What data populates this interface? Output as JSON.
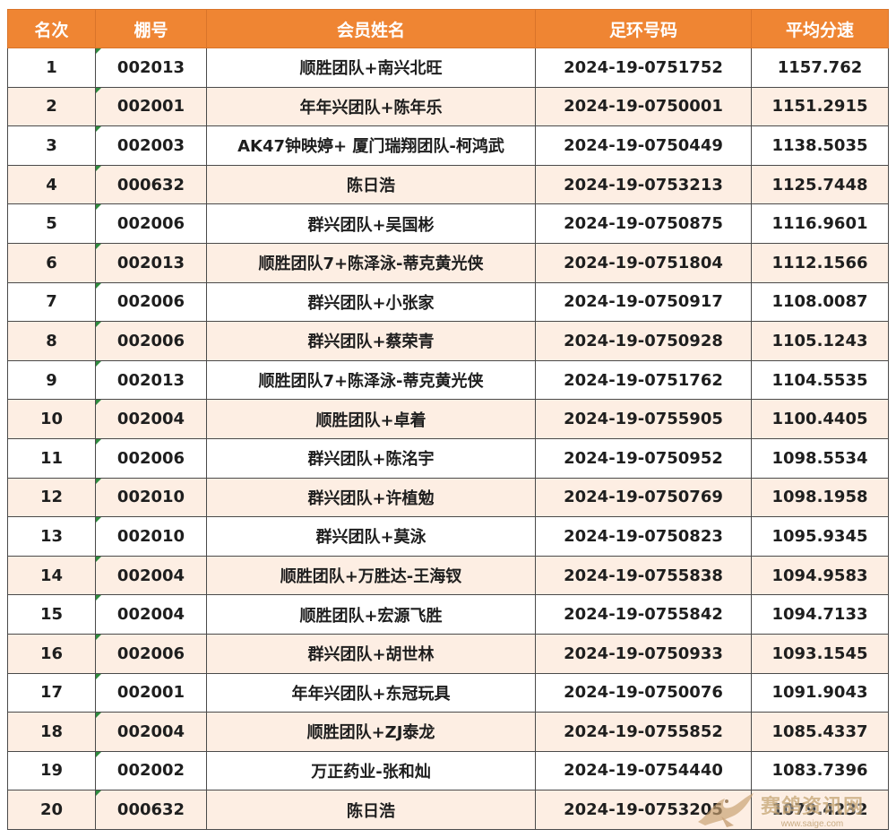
{
  "table": {
    "headers": {
      "rank": "名次",
      "shed": "棚号",
      "member": "会员姓名",
      "ring": "足环号码",
      "speed": "平均分速"
    },
    "rows": [
      {
        "rank": "1",
        "shed": "002013",
        "member": "顺胜团队+南兴北旺",
        "ring": "2024-19-0751752",
        "speed": "1157.762"
      },
      {
        "rank": "2",
        "shed": "002001",
        "member": "年年兴团队+陈年乐",
        "ring": "2024-19-0750001",
        "speed": "1151.2915"
      },
      {
        "rank": "3",
        "shed": "002003",
        "member": "AK47钟映婷+ 厦门瑞翔团队-柯鸿武",
        "ring": "2024-19-0750449",
        "speed": "1138.5035"
      },
      {
        "rank": "4",
        "shed": "000632",
        "member": "陈日浩",
        "ring": "2024-19-0753213",
        "speed": "1125.7448"
      },
      {
        "rank": "5",
        "shed": "002006",
        "member": "群兴团队+吴国彬",
        "ring": "2024-19-0750875",
        "speed": "1116.9601"
      },
      {
        "rank": "6",
        "shed": "002013",
        "member": "顺胜团队7+陈泽泳-蒂克黄光侠",
        "ring": "2024-19-0751804",
        "speed": "1112.1566"
      },
      {
        "rank": "7",
        "shed": "002006",
        "member": "群兴团队+小张家",
        "ring": "2024-19-0750917",
        "speed": "1108.0087"
      },
      {
        "rank": "8",
        "shed": "002006",
        "member": "群兴团队+蔡荣青",
        "ring": "2024-19-0750928",
        "speed": "1105.1243"
      },
      {
        "rank": "9",
        "shed": "002013",
        "member": "顺胜团队7+陈泽泳-蒂克黄光侠",
        "ring": "2024-19-0751762",
        "speed": "1104.5535"
      },
      {
        "rank": "10",
        "shed": "002004",
        "member": "顺胜团队+卓着",
        "ring": "2024-19-0755905",
        "speed": "1100.4405"
      },
      {
        "rank": "11",
        "shed": "002006",
        "member": "群兴团队+陈洺宇",
        "ring": "2024-19-0750952",
        "speed": "1098.5534"
      },
      {
        "rank": "12",
        "shed": "002010",
        "member": "群兴团队+许植勉",
        "ring": "2024-19-0750769",
        "speed": "1098.1958"
      },
      {
        "rank": "13",
        "shed": "002010",
        "member": "群兴团队+莫泳",
        "ring": "2024-19-0750823",
        "speed": "1095.9345"
      },
      {
        "rank": "14",
        "shed": "002004",
        "member": "顺胜团队+万胜达-王海钗",
        "ring": "2024-19-0755838",
        "speed": "1094.9583"
      },
      {
        "rank": "15",
        "shed": "002004",
        "member": "顺胜团队+宏源飞胜",
        "ring": "2024-19-0755842",
        "speed": "1094.7133"
      },
      {
        "rank": "16",
        "shed": "002006",
        "member": "群兴团队+胡世林",
        "ring": "2024-19-0750933",
        "speed": "1093.1545"
      },
      {
        "rank": "17",
        "shed": "002001",
        "member": "年年兴团队+东冠玩具",
        "ring": "2024-19-0750076",
        "speed": "1091.9043"
      },
      {
        "rank": "18",
        "shed": "002004",
        "member": "顺胜团队+ZJ泰龙",
        "ring": "2024-19-0755852",
        "speed": "1085.4337"
      },
      {
        "rank": "19",
        "shed": "002002",
        "member": "万正药业-张和灿",
        "ring": "2024-19-0754440",
        "speed": "1083.7396"
      },
      {
        "rank": "20",
        "shed": "000632",
        "member": "陈日浩",
        "ring": "2024-19-0753205",
        "speed": "1079.4232"
      }
    ]
  },
  "watermark": {
    "text": "赛鸽资讯网",
    "url": "www.saige.com",
    "icon": "pigeon-logo-icon",
    "color": "#c8a878"
  },
  "colors": {
    "header_bg": "#ef8533",
    "header_text": "#ffffff",
    "alt_row_bg": "#fdeee3",
    "border": "#4a4a4a",
    "shed_marker": "#2e8b3e"
  }
}
